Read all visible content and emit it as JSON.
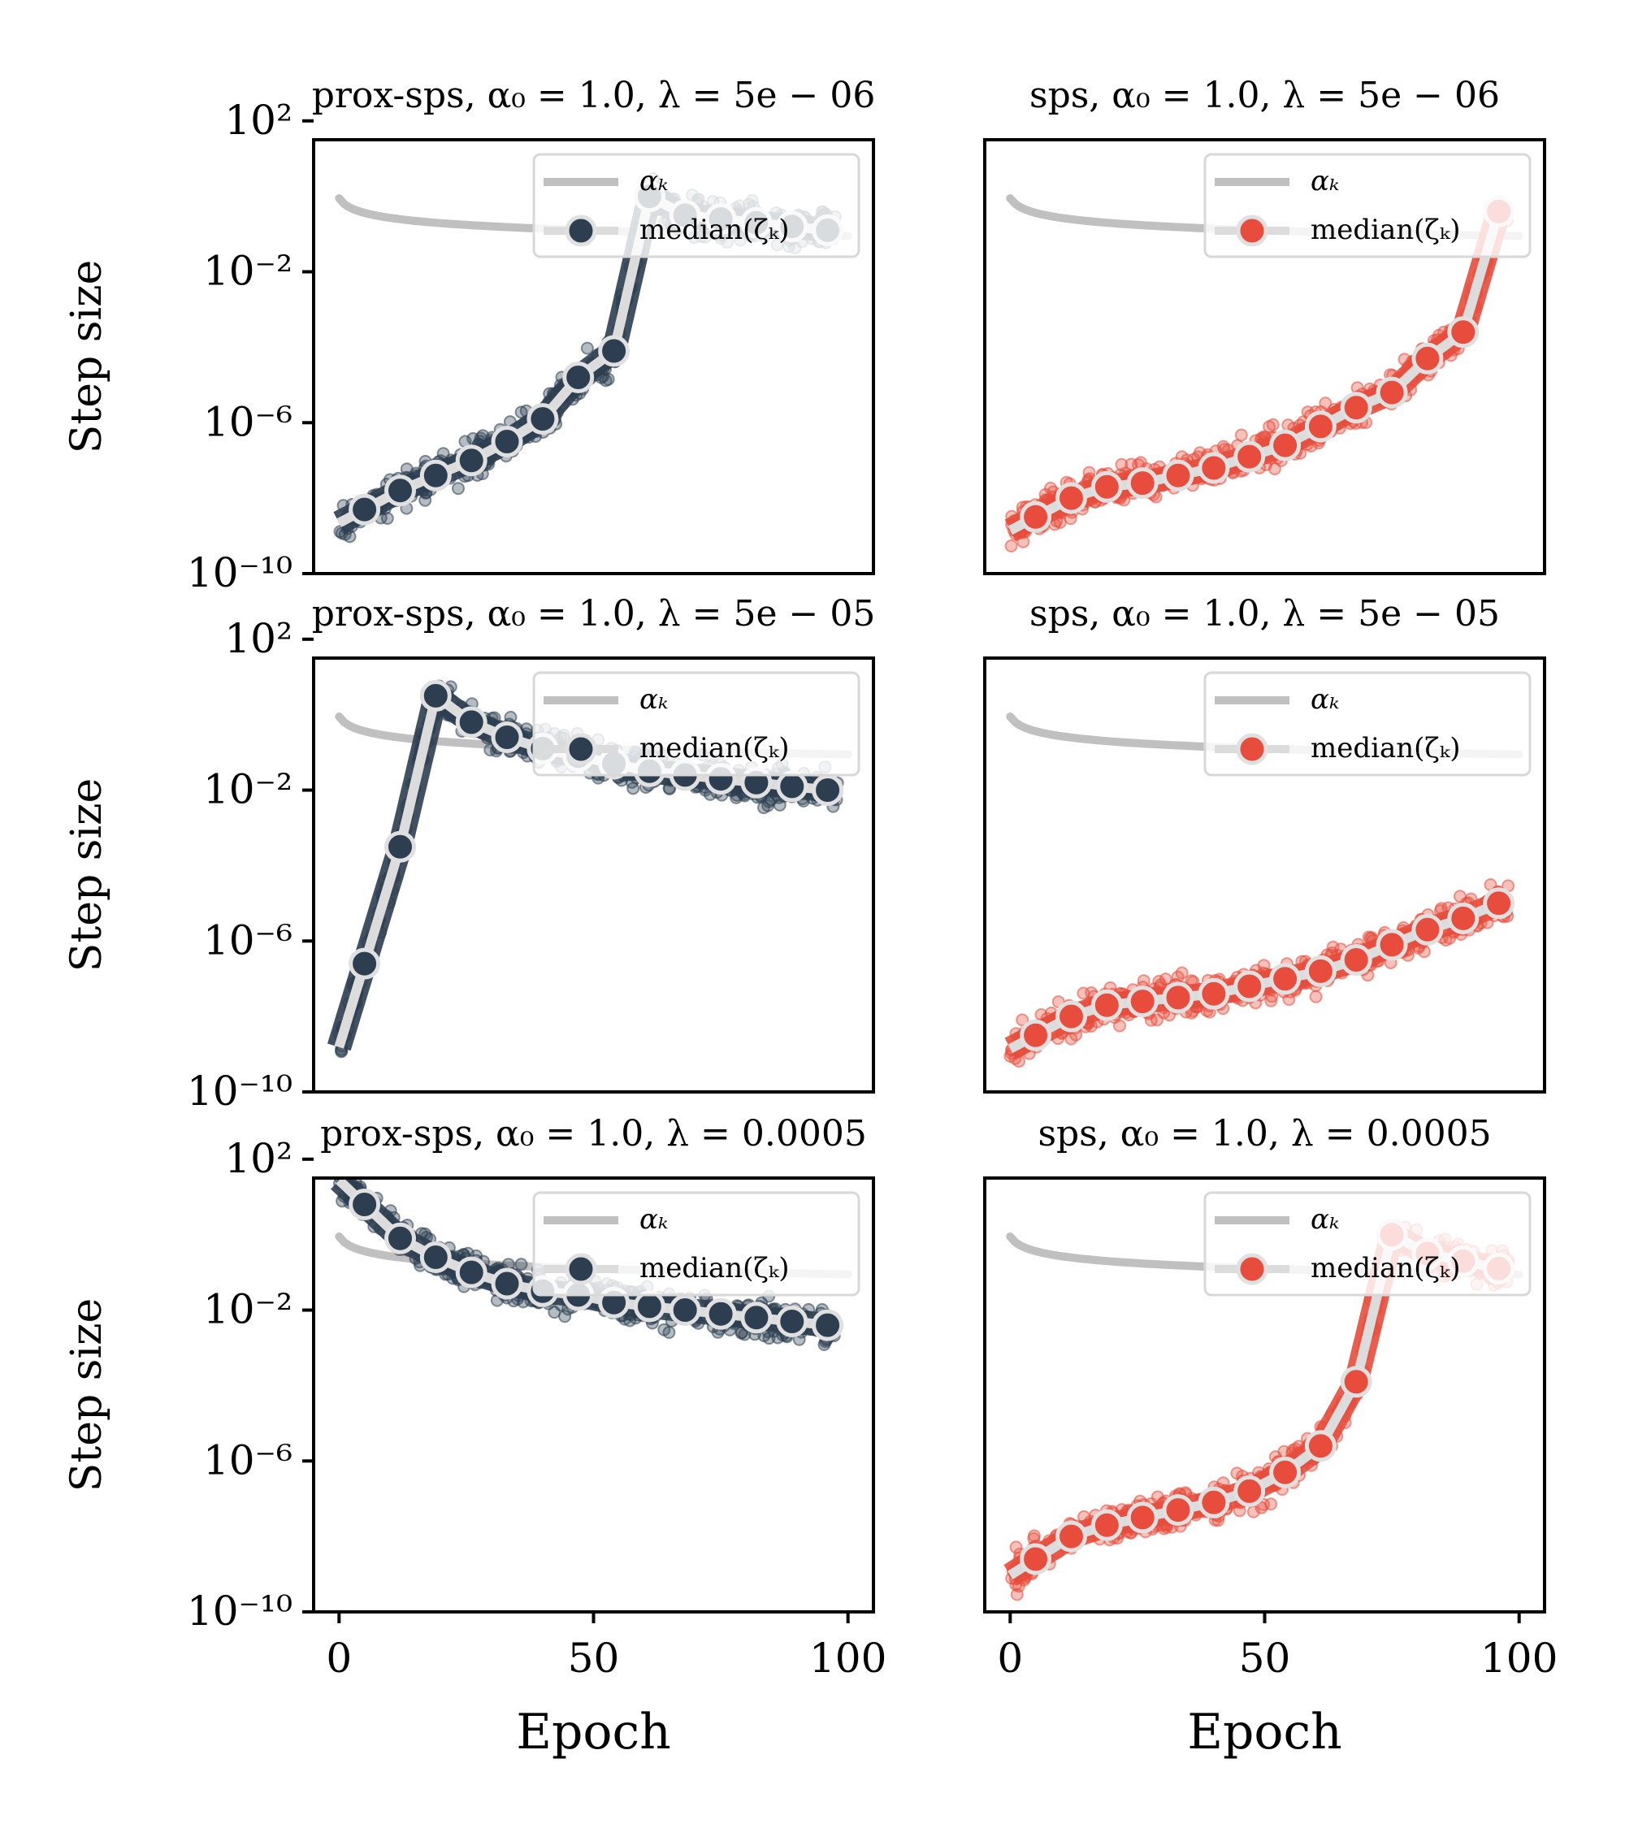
{
  "chart_data": [
    {
      "type": "scatter",
      "title": "prox-sps, α₀ = 1.0, λ = 5e − 06",
      "xlabel": "",
      "ylabel": "Step size",
      "xlim": [
        -5,
        105
      ],
      "ylim_log10": [
        -10,
        1.5
      ],
      "yticks": [
        "10²",
        "10⁻²",
        "10⁻⁶",
        "10⁻¹⁰"
      ],
      "xticks": [],
      "legend": [
        "αₖ",
        "median(ζₖ)"
      ],
      "legend_position": "top-right",
      "color": "#2c3e50",
      "median_x": [
        5,
        12,
        19,
        26,
        33,
        40,
        47,
        54,
        61,
        68,
        75,
        82,
        89,
        96
      ],
      "median_log10": [
        -8.3,
        -7.8,
        -7.4,
        -7.0,
        -6.5,
        -5.9,
        -4.8,
        -4.1,
        0.0,
        -0.5,
        -0.6,
        -0.7,
        -0.8,
        -0.9
      ],
      "spread_log10": 0.9
    },
    {
      "type": "scatter",
      "title": "sps, α₀ = 1.0, λ = 5e − 06",
      "xlabel": "",
      "ylabel": "",
      "xlim": [
        -5,
        105
      ],
      "ylim_log10": [
        -10,
        1.5
      ],
      "yticks": [],
      "xticks": [],
      "legend": [
        "αₖ",
        "median(ζₖ)"
      ],
      "legend_position": "top-right",
      "color": "#e74c3c",
      "median_x": [
        5,
        12,
        19,
        26,
        33,
        40,
        47,
        54,
        61,
        68,
        75,
        82,
        89,
        96
      ],
      "median_log10": [
        -8.5,
        -8.0,
        -7.7,
        -7.6,
        -7.4,
        -7.2,
        -6.9,
        -6.6,
        -6.1,
        -5.6,
        -5.2,
        -4.3,
        -3.6,
        -0.4
      ],
      "spread_log10": 0.9
    },
    {
      "type": "scatter",
      "title": "prox-sps, α₀ = 1.0, λ = 5e − 05",
      "xlabel": "",
      "ylabel": "Step size",
      "xlim": [
        -5,
        105
      ],
      "ylim_log10": [
        -10,
        1.5
      ],
      "yticks": [
        "10²",
        "10⁻²",
        "10⁻⁶",
        "10⁻¹⁰"
      ],
      "xticks": [],
      "legend": [
        "αₖ",
        "median(ζₖ)"
      ],
      "legend_position": "top-right",
      "color": "#2c3e50",
      "median_x": [
        5,
        12,
        19,
        26,
        33,
        40,
        47,
        54,
        61,
        68,
        75,
        82,
        89,
        96
      ],
      "median_log10": [
        -6.6,
        -3.5,
        0.5,
        -0.2,
        -0.6,
        -0.9,
        -1.1,
        -1.3,
        -1.5,
        -1.6,
        -1.7,
        -1.8,
        -1.9,
        -2.0
      ],
      "spread_log10": 0.9
    },
    {
      "type": "scatter",
      "title": "sps, α₀ = 1.0, λ = 5e − 05",
      "xlabel": "",
      "ylabel": "",
      "xlim": [
        -5,
        105
      ],
      "ylim_log10": [
        -10,
        1.5
      ],
      "yticks": [],
      "xticks": [],
      "legend": [
        "αₖ",
        "median(ζₖ)"
      ],
      "legend_position": "top-right",
      "color": "#e74c3c",
      "median_x": [
        5,
        12,
        19,
        26,
        33,
        40,
        47,
        54,
        61,
        68,
        75,
        82,
        89,
        96
      ],
      "median_log10": [
        -8.5,
        -8.0,
        -7.7,
        -7.6,
        -7.5,
        -7.4,
        -7.2,
        -7.0,
        -6.8,
        -6.5,
        -6.1,
        -5.7,
        -5.4,
        -5.0
      ],
      "spread_log10": 0.9
    },
    {
      "type": "scatter",
      "title": "prox-sps, α₀ = 1.0, λ = 0.0005",
      "xlabel": "Epoch",
      "ylabel": "Step size",
      "xlim": [
        -5,
        105
      ],
      "ylim_log10": [
        -10,
        1.5
      ],
      "yticks": [
        "10²",
        "10⁻²",
        "10⁻⁶",
        "10⁻¹⁰"
      ],
      "xticks": [
        "0",
        "50",
        "100"
      ],
      "legend": [
        "αₖ",
        "median(ζₖ)"
      ],
      "legend_position": "top-right",
      "color": "#2c3e50",
      "median_x": [
        5,
        12,
        19,
        26,
        33,
        40,
        47,
        54,
        61,
        68,
        75,
        82,
        89,
        96
      ],
      "median_log10": [
        0.8,
        -0.1,
        -0.6,
        -1.0,
        -1.3,
        -1.5,
        -1.6,
        -1.8,
        -1.9,
        -2.0,
        -2.1,
        -2.2,
        -2.3,
        -2.4
      ],
      "spread_log10": 0.9
    },
    {
      "type": "scatter",
      "title": "sps, α₀ = 1.0, λ = 0.0005",
      "xlabel": "Epoch",
      "ylabel": "",
      "xlim": [
        -5,
        105
      ],
      "ylim_log10": [
        -10,
        1.5
      ],
      "yticks": [],
      "xticks": [
        "0",
        "50",
        "100"
      ],
      "legend": [
        "αₖ",
        "median(ζₖ)"
      ],
      "legend_position": "top-right",
      "color": "#e74c3c",
      "median_x": [
        5,
        12,
        19,
        26,
        33,
        40,
        47,
        54,
        61,
        68,
        75,
        82,
        89,
        96
      ],
      "median_log10": [
        -8.6,
        -8.0,
        -7.7,
        -7.5,
        -7.3,
        -7.1,
        -6.8,
        -6.3,
        -5.6,
        -3.9,
        0.0,
        -0.5,
        -0.7,
        -0.9
      ],
      "spread_log10": 0.9
    }
  ]
}
